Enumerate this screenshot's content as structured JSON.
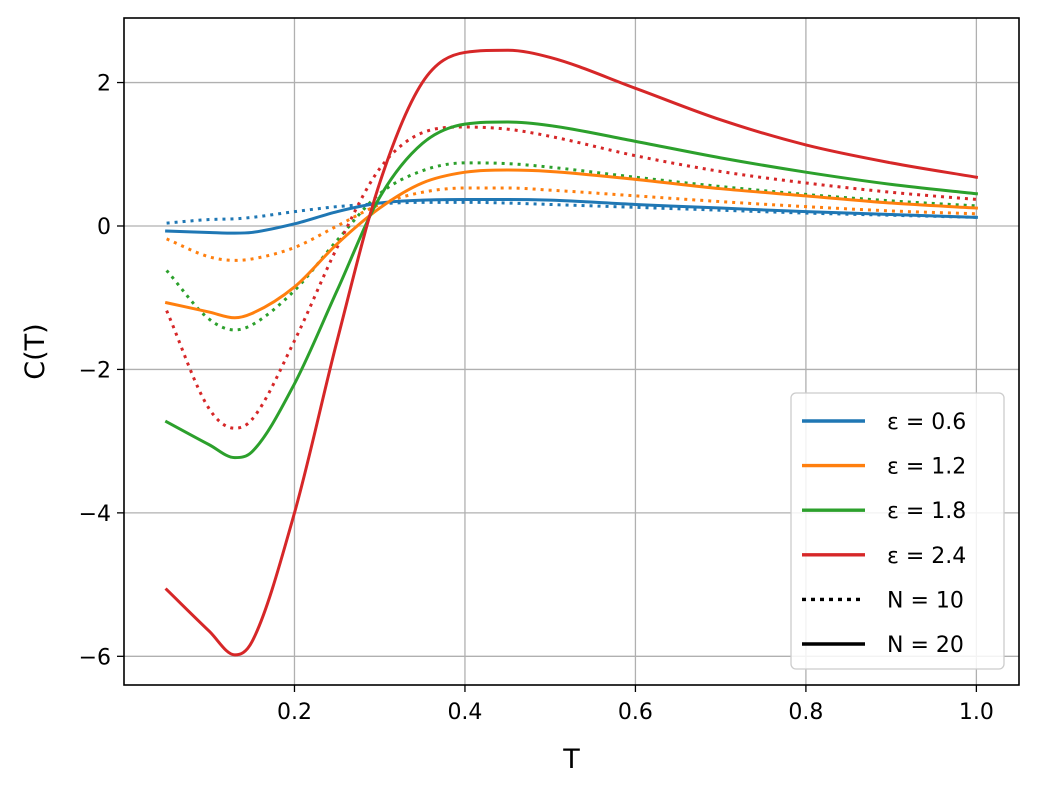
{
  "chart_data": {
    "type": "line",
    "xlabel": "T",
    "ylabel": "C(T)",
    "xlim": [
      0.0,
      1.05
    ],
    "ylim": [
      -6.4,
      2.9
    ],
    "x_ticks": [
      0.2,
      0.4,
      0.6,
      0.8,
      1.0
    ],
    "x_tick_labels": [
      "0.2",
      "0.4",
      "0.6",
      "0.8",
      "1.0"
    ],
    "y_ticks": [
      -6,
      -4,
      -2,
      0,
      2
    ],
    "y_tick_labels": [
      "−6",
      "−4",
      "−2",
      "0",
      "2"
    ],
    "grid": true,
    "legend_position": "lower-right",
    "x": [
      0.05,
      0.1,
      0.13,
      0.15,
      0.2,
      0.25,
      0.3,
      0.35,
      0.4,
      0.45,
      0.5,
      0.6,
      0.7,
      0.8,
      0.9,
      1.0
    ],
    "series": [
      {
        "name": "ε = 0.6",
        "color": "#1f77b4",
        "style": "solid",
        "N": 20,
        "values": [
          -0.07,
          -0.09,
          -0.1,
          -0.09,
          0.03,
          0.2,
          0.32,
          0.36,
          0.37,
          0.37,
          0.36,
          0.3,
          0.25,
          0.2,
          0.16,
          0.12
        ]
      },
      {
        "name": "ε = 0.6",
        "color": "#1f77b4",
        "style": "dotted",
        "N": 10,
        "values": [
          0.04,
          0.09,
          0.1,
          0.12,
          0.2,
          0.27,
          0.31,
          0.33,
          0.33,
          0.32,
          0.3,
          0.26,
          0.22,
          0.18,
          0.15,
          0.12
        ]
      },
      {
        "name": "ε = 1.2",
        "color": "#ff7f0e",
        "style": "solid",
        "N": 20,
        "values": [
          -1.07,
          -1.2,
          -1.28,
          -1.22,
          -0.85,
          -0.25,
          0.25,
          0.6,
          0.75,
          0.78,
          0.76,
          0.65,
          0.52,
          0.42,
          0.32,
          0.25
        ]
      },
      {
        "name": "ε = 1.2",
        "color": "#ff7f0e",
        "style": "dotted",
        "N": 10,
        "values": [
          -0.18,
          -0.43,
          -0.48,
          -0.46,
          -0.3,
          0.0,
          0.3,
          0.47,
          0.53,
          0.53,
          0.5,
          0.42,
          0.34,
          0.27,
          0.21,
          0.17
        ]
      },
      {
        "name": "ε = 1.8",
        "color": "#2ca02c",
        "style": "solid",
        "N": 20,
        "values": [
          -2.73,
          -3.05,
          -3.23,
          -3.15,
          -2.2,
          -0.9,
          0.4,
          1.15,
          1.42,
          1.45,
          1.4,
          1.18,
          0.95,
          0.75,
          0.58,
          0.45
        ]
      },
      {
        "name": "ε = 1.8",
        "color": "#2ca02c",
        "style": "dotted",
        "N": 10,
        "values": [
          -0.62,
          -1.3,
          -1.45,
          -1.38,
          -0.9,
          -0.2,
          0.45,
          0.77,
          0.88,
          0.87,
          0.82,
          0.68,
          0.55,
          0.44,
          0.35,
          0.28
        ]
      },
      {
        "name": "ε = 2.4",
        "color": "#d62728",
        "style": "solid",
        "N": 20,
        "values": [
          -5.07,
          -5.65,
          -5.98,
          -5.8,
          -4.0,
          -1.6,
          0.6,
          2.0,
          2.42,
          2.45,
          2.35,
          1.92,
          1.48,
          1.13,
          0.88,
          0.68
        ]
      },
      {
        "name": "ε = 2.4",
        "color": "#d62728",
        "style": "dotted",
        "N": 10,
        "values": [
          -1.18,
          -2.55,
          -2.82,
          -2.7,
          -1.6,
          -0.3,
          0.8,
          1.3,
          1.38,
          1.35,
          1.25,
          0.98,
          0.76,
          0.6,
          0.47,
          0.37
        ]
      }
    ],
    "legend": [
      {
        "label": "ε = 0.6",
        "color": "#1f77b4",
        "style": "solid"
      },
      {
        "label": "ε = 1.2",
        "color": "#ff7f0e",
        "style": "solid"
      },
      {
        "label": "ε = 1.8",
        "color": "#2ca02c",
        "style": "solid"
      },
      {
        "label": "ε = 2.4",
        "color": "#d62728",
        "style": "solid"
      },
      {
        "label": "N = 10",
        "color": "#000000",
        "style": "dotted"
      },
      {
        "label": "N = 20",
        "color": "#000000",
        "style": "solid"
      }
    ]
  }
}
